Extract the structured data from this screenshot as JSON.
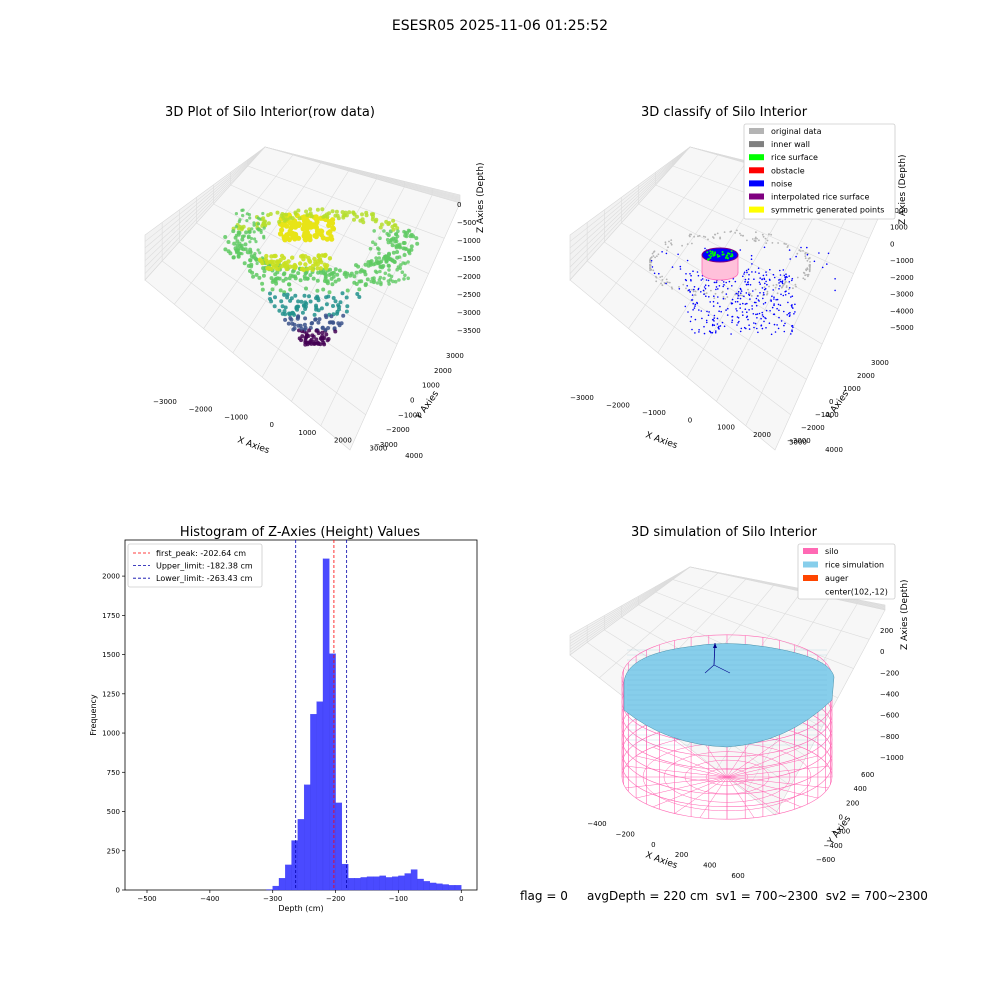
{
  "figure": {
    "suptitle": "ESESR05 2025-11-06 01:25:52",
    "status": {
      "flag": "flag = 0",
      "avg_depth": "avgDepth = 220 cm",
      "sv1": "sv1 = 700~2300",
      "sv2": "sv2 = 700~2300"
    }
  },
  "colors": {
    "original_data": "#b4b4b4",
    "inner_wall": "#808080",
    "rice_surface": "#00ff00",
    "obstacle": "#ff0000",
    "noise": "#0000ff",
    "interpolated_rice_surface": "#800080",
    "symmetric_generated_points": "#ffff00",
    "silo": "#ff69b4",
    "rice_simulation": "#87ceeb",
    "auger": "#ff4500",
    "histogram_bars": "#4a4aff",
    "first_peak_line": "#ff0000",
    "limit_lines": "#0000aa"
  },
  "chart_data": [
    {
      "type": "scatter",
      "projection": "3d",
      "title": "3D Plot of Silo Interior(row data)",
      "xlabel": "X Axies",
      "ylabel": "Y Axies",
      "zlabel": "Z Axies (Depth)",
      "x_ticks": [
        "−3000",
        "−2000",
        "−1000",
        "0",
        "1000",
        "2000",
        "3000",
        "4000"
      ],
      "y_ticks": [
        "−3000",
        "−2000",
        "−1000",
        "0",
        "1000",
        "2000",
        "3000"
      ],
      "z_ticks": [
        "0",
        "−500",
        "−1000",
        "−1500",
        "−2000",
        "−2500",
        "−3000",
        "−3500"
      ],
      "colormap": "viridis"
    },
    {
      "type": "scatter",
      "projection": "3d",
      "title": "3D classify of Silo Interior",
      "xlabel": "X Axies",
      "ylabel": "Y Axies",
      "zlabel": "Z Axies (Depth)",
      "x_ticks": [
        "−3000",
        "−2000",
        "−1000",
        "0",
        "1000",
        "2000",
        "3000",
        "4000"
      ],
      "y_ticks": [
        "−3000",
        "−2000",
        "−1000",
        "0",
        "1000",
        "2000",
        "3000"
      ],
      "z_ticks": [
        "2000",
        "1000",
        "0",
        "−1000",
        "−2000",
        "−3000",
        "−4000",
        "−5000"
      ],
      "legend_position": "top-right",
      "legend": [
        {
          "label": "original data",
          "color": "#b4b4b4"
        },
        {
          "label": "inner wall",
          "color": "#808080"
        },
        {
          "label": "rice surface",
          "color": "#00ff00"
        },
        {
          "label": "obstacle",
          "color": "#ff0000"
        },
        {
          "label": "noise",
          "color": "#0000ff"
        },
        {
          "label": "interpolated rice surface",
          "color": "#800080"
        },
        {
          "label": "symmetric generated points",
          "color": "#ffff00"
        }
      ]
    },
    {
      "type": "bar",
      "title": "Histogram of Z-Axies (Height) Values",
      "xlabel": "Depth (cm)",
      "ylabel": "Frequency",
      "xlim": [
        -535,
        25
      ],
      "ylim": [
        0,
        2230
      ],
      "x_ticks": [
        -500,
        -400,
        -300,
        -200,
        -100,
        0
      ],
      "y_ticks": [
        0,
        250,
        500,
        750,
        1000,
        1250,
        1500,
        1750,
        2000
      ],
      "bin_width": 10,
      "bins": [
        {
          "x": -305,
          "value": 3
        },
        {
          "x": -295,
          "value": 25
        },
        {
          "x": -285,
          "value": 75
        },
        {
          "x": -275,
          "value": 160
        },
        {
          "x": -265,
          "value": 315
        },
        {
          "x": -255,
          "value": 450
        },
        {
          "x": -245,
          "value": 670
        },
        {
          "x": -235,
          "value": 1120
        },
        {
          "x": -225,
          "value": 1200
        },
        {
          "x": -215,
          "value": 2110
        },
        {
          "x": -205,
          "value": 1505
        },
        {
          "x": -195,
          "value": 555
        },
        {
          "x": -185,
          "value": 165
        },
        {
          "x": -175,
          "value": 75
        },
        {
          "x": -165,
          "value": 75
        },
        {
          "x": -155,
          "value": 80
        },
        {
          "x": -145,
          "value": 85
        },
        {
          "x": -135,
          "value": 85
        },
        {
          "x": -125,
          "value": 90
        },
        {
          "x": -115,
          "value": 80
        },
        {
          "x": -105,
          "value": 85
        },
        {
          "x": -95,
          "value": 90
        },
        {
          "x": -85,
          "value": 105
        },
        {
          "x": -75,
          "value": 130
        },
        {
          "x": -65,
          "value": 70
        },
        {
          "x": -55,
          "value": 55
        },
        {
          "x": -45,
          "value": 45
        },
        {
          "x": -35,
          "value": 40
        },
        {
          "x": -25,
          "value": 35
        },
        {
          "x": -15,
          "value": 30
        },
        {
          "x": -5,
          "value": 30
        }
      ],
      "vlines": [
        {
          "label": "first_peak: -202.64 cm",
          "x": -202.64,
          "color": "#ff0000"
        },
        {
          "label": "Upper_limit: -182.38 cm",
          "x": -182.38,
          "color": "#0000aa"
        },
        {
          "label": "Lower_limit: -263.43 cm",
          "x": -263.43,
          "color": "#0000aa"
        }
      ],
      "legend_position": "top-left"
    },
    {
      "type": "scatter",
      "projection": "3d",
      "title": "3D simulation of Silo Interior",
      "xlabel": "X Axies",
      "ylabel": "Y Axies",
      "zlabel": "Z Axies (Depth)",
      "x_ticks": [
        "−400",
        "−200",
        "0",
        "200",
        "400",
        "600"
      ],
      "y_ticks": [
        "600",
        "400",
        "200",
        "0",
        "−200",
        "−400",
        "−600"
      ],
      "z_ticks": [
        "200",
        "0",
        "−200",
        "−400",
        "−600",
        "−800",
        "−1000"
      ],
      "legend_position": "top-right",
      "legend": [
        {
          "label": "silo",
          "color": "#ff69b4"
        },
        {
          "label": "rice simulation",
          "color": "#87ceeb"
        },
        {
          "label": "auger",
          "color": "#ff4500"
        },
        {
          "label": "center(102,-12)",
          "color": ""
        }
      ]
    }
  ]
}
